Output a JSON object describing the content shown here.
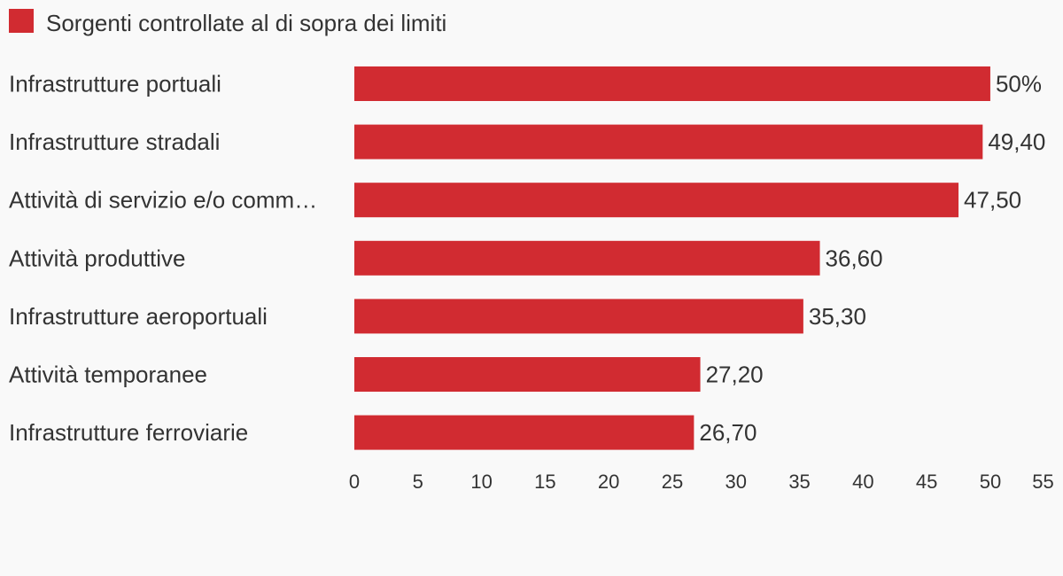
{
  "colors": {
    "bar": "#d12b31",
    "text": "#333333",
    "background": "#f9f9f9"
  },
  "chart_data": {
    "type": "bar",
    "orientation": "horizontal",
    "legend": {
      "position": "top-left"
    },
    "series": [
      {
        "name": "Sorgenti controllate al di sopra dei limiti",
        "color": "#d12b31",
        "values": [
          50,
          49.4,
          47.5,
          36.6,
          35.3,
          27.2,
          26.7
        ]
      }
    ],
    "categories": [
      "Infrastrutture portuali",
      "Infrastrutture stradali",
      "Attività di servizio e/o comm…",
      "Attività produttive",
      "Infrastrutture aeroportuali",
      "Attività temporanee",
      "Infrastrutture ferroviarie"
    ],
    "data_labels": [
      "50%",
      "49,40",
      "47,50",
      "36,60",
      "35,30",
      "27,20",
      "26,70"
    ],
    "x_ticks": [
      0,
      5,
      10,
      15,
      20,
      25,
      30,
      35,
      40,
      45,
      50,
      55
    ],
    "xlim": [
      0,
      54.6
    ],
    "grid": false
  }
}
